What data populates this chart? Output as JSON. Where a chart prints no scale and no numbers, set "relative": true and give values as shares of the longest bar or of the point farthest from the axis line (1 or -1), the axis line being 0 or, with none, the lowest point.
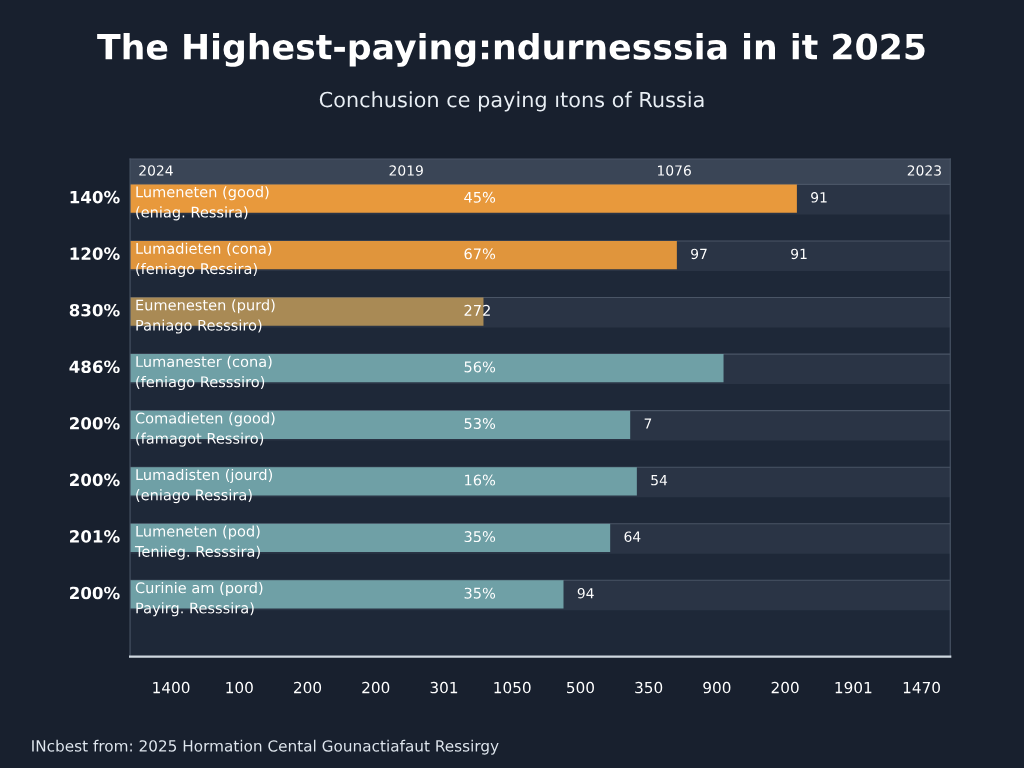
{
  "chart_data": {
    "type": "bar",
    "orientation": "horizontal",
    "relative": true,
    "title": "The Highest-paying:ndurnesssia in it 2025",
    "subtitle": "Conchusion ce paying ıtons of Russia",
    "categories": [
      "Lumeneten (good)\n(eniag. Ressira)",
      "Lumadieten (cona)\n(feniago Ressira)",
      "Eumenesten (purd)\nPaniago Resssiro)",
      "Lumanester (cona)\n(feniago Resssiro)",
      "Comadieten (good)\n(famagot Ressiro)",
      "Lumadisten (jourd)\n(eniago Ressira)",
      "Lumeneten (pod)\nTeniieg. Resssira)",
      "Curinie am (pord)\nPayirg. Resssira)"
    ],
    "values": [
      1.0,
      0.82,
      0.53,
      0.89,
      0.75,
      0.76,
      0.72,
      0.65
    ],
    "colors": [
      "#e8993c",
      "#e0953c",
      "#a98a55",
      "#6fa0a6",
      "#6fa0a6",
      "#6fa0a6",
      "#6fa0a6",
      "#6fa0a6"
    ],
    "annotations": [
      "140%",
      "45%",
      "91",
      "120%",
      "67%",
      "97",
      "91",
      "830%",
      "272",
      "486%",
      "56%",
      "200%",
      "53%",
      "7",
      "200%",
      "16%",
      "54",
      "201%",
      "35%",
      "64",
      "200%",
      "35%",
      "94",
      "2024",
      "2019",
      "1076",
      "2023",
      "1400",
      "100",
      "200",
      "200",
      "301",
      "1050",
      "500",
      "350",
      "900",
      "200",
      "1901",
      "1470",
      "INcbest from: 2025 Hormation Cental Gounactiafaut Ressirgy"
    ]
  }
}
